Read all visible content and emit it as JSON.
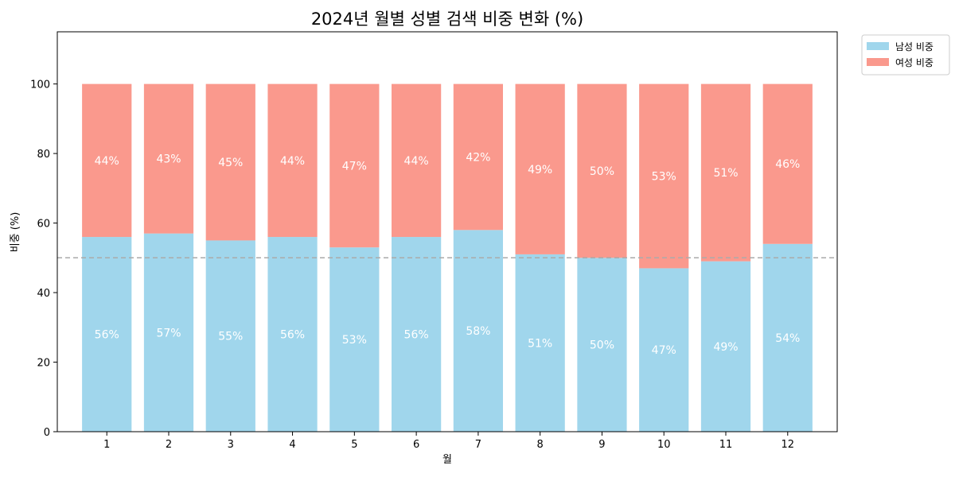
{
  "chart_data": {
    "type": "bar",
    "stacked": true,
    "title": "2024년 월별 성별 검색 비중 변화 (%)",
    "xlabel": "월",
    "ylabel": "비중 (%)",
    "ylim": [
      0,
      115
    ],
    "yticks": [
      0,
      20,
      40,
      60,
      80,
      100
    ],
    "categories": [
      "1",
      "2",
      "3",
      "4",
      "5",
      "6",
      "7",
      "8",
      "9",
      "10",
      "11",
      "12"
    ],
    "series": [
      {
        "name": "남성 비중",
        "color": "#a0d6ec",
        "values": [
          56,
          57,
          55,
          56,
          53,
          56,
          58,
          51,
          50,
          47,
          49,
          54
        ]
      },
      {
        "name": "여성 비중",
        "color": "#fa998d",
        "values": [
          44,
          43,
          45,
          44,
          47,
          44,
          42,
          49,
          50,
          53,
          51,
          46
        ]
      }
    ],
    "reference_line": {
      "value": 50,
      "style": "dashed",
      "color": "#aaaaaa"
    },
    "legend_position": "outside-top-right",
    "grid": false
  }
}
